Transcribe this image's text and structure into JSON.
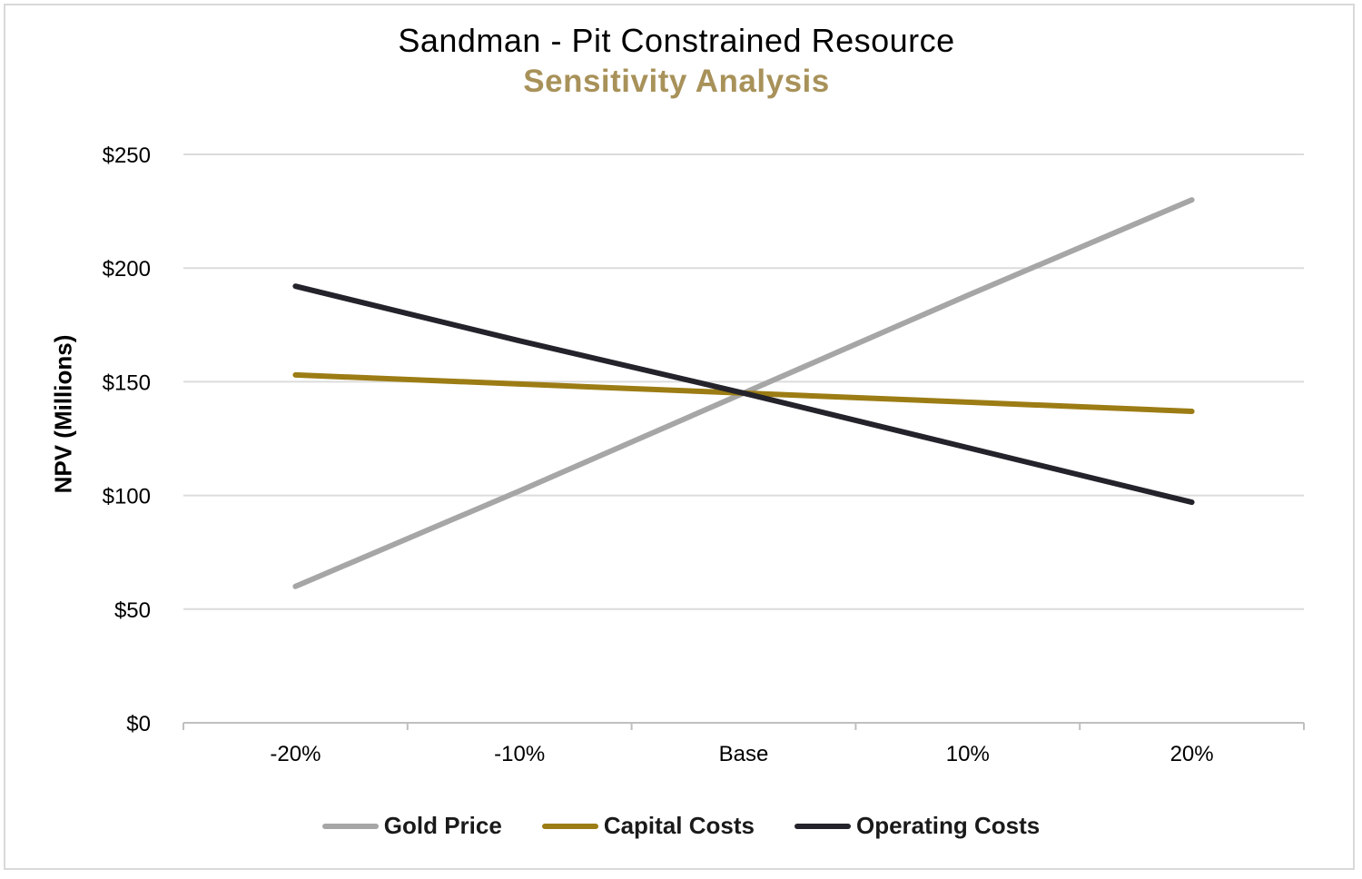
{
  "title": "Sandman - Pit Constrained Resource",
  "subtitle": "Sensitivity Analysis",
  "colors": {
    "subtitle": "#a8925a",
    "gridline": "#dcdcdc",
    "axis": "#bfbfbf",
    "tick_text": "#000000"
  },
  "chart_data": {
    "type": "line",
    "title": "Sandman - Pit Constrained Resource",
    "subtitle": "Sensitivity Analysis",
    "xlabel": "",
    "ylabel": "NPV (Millions)",
    "categories": [
      "-20%",
      "-10%",
      "Base",
      "10%",
      "20%"
    ],
    "ylim": [
      0,
      250
    ],
    "yticks": [
      0,
      50,
      100,
      150,
      200,
      250
    ],
    "ytick_labels": [
      "$0",
      "$50",
      "$100",
      "$150",
      "$200",
      "$250"
    ],
    "grid": true,
    "legend_position": "bottom",
    "series": [
      {
        "name": "Gold Price",
        "color": "#a6a6a6",
        "values": [
          60,
          102,
          145,
          188,
          230
        ]
      },
      {
        "name": "Capital Costs",
        "color": "#9c7c14",
        "values": [
          153,
          149,
          145,
          141,
          137
        ]
      },
      {
        "name": "Operating Costs",
        "color": "#24232b",
        "values": [
          192,
          168,
          145,
          121,
          97
        ]
      }
    ]
  }
}
